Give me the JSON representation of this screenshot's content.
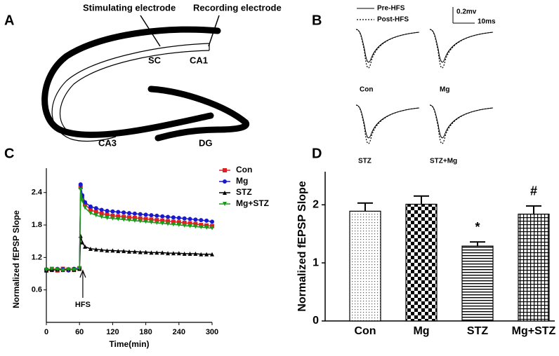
{
  "panel_labels": [
    "A",
    "B",
    "C",
    "D"
  ],
  "panel_a": {
    "labels": [
      "Stimulating electrode",
      "Recording electrode",
      "SC",
      "CA1",
      "CA3",
      "DG"
    ]
  },
  "panel_b": {
    "legend": [
      "Pre-HFS",
      "Post-HFS"
    ],
    "scale": [
      "0.2mv",
      "10ms"
    ],
    "traces": [
      "Con",
      "Mg",
      "STZ",
      "STZ+Mg"
    ]
  },
  "chart_data": [
    {
      "type": "line",
      "x_label": "Time(min)",
      "y_label": "Normalized fEPSP Slope",
      "x": [
        0,
        10,
        20,
        30,
        40,
        50,
        60,
        62,
        65,
        70,
        80,
        90,
        100,
        110,
        120,
        130,
        140,
        150,
        160,
        170,
        180,
        190,
        200,
        210,
        220,
        230,
        240,
        250,
        260,
        270,
        280,
        290,
        300
      ],
      "series": [
        {
          "name": "Con",
          "color": "#e02020",
          "marker": "square",
          "values": [
            0.97,
            0.98,
            0.96,
            0.99,
            0.97,
            0.98,
            1.0,
            2.5,
            2.3,
            2.18,
            2.08,
            2.04,
            2.01,
            1.99,
            1.97,
            1.96,
            1.95,
            1.94,
            1.93,
            1.92,
            1.91,
            1.9,
            1.89,
            1.88,
            1.87,
            1.86,
            1.85,
            1.84,
            1.83,
            1.82,
            1.8,
            1.79,
            1.78
          ]
        },
        {
          "name": "Mg",
          "color": "#1a1acc",
          "marker": "circle",
          "values": [
            0.98,
            0.97,
            0.99,
            0.98,
            0.96,
            0.99,
            1.0,
            2.55,
            2.35,
            2.22,
            2.14,
            2.11,
            2.08,
            2.06,
            2.05,
            2.04,
            2.03,
            2.02,
            2.01,
            2.0,
            1.99,
            1.98,
            1.97,
            1.96,
            1.95,
            1.94,
            1.93,
            1.92,
            1.91,
            1.9,
            1.89,
            1.88,
            1.86
          ]
        },
        {
          "name": "STZ",
          "color": "#000000",
          "marker": "triangle-up",
          "values": [
            0.96,
            0.97,
            0.98,
            0.97,
            0.99,
            0.97,
            0.99,
            1.6,
            1.48,
            1.4,
            1.36,
            1.35,
            1.34,
            1.33,
            1.33,
            1.32,
            1.32,
            1.31,
            1.31,
            1.3,
            1.3,
            1.29,
            1.29,
            1.29,
            1.28,
            1.28,
            1.28,
            1.27,
            1.27,
            1.27,
            1.26,
            1.26,
            1.26
          ]
        },
        {
          "name": "Mg+STZ",
          "color": "#1a9a1a",
          "marker": "triangle-down",
          "values": [
            0.97,
            0.99,
            0.98,
            0.96,
            0.98,
            0.97,
            1.0,
            2.45,
            2.25,
            2.12,
            2.02,
            1.98,
            1.95,
            1.93,
            1.92,
            1.91,
            1.9,
            1.89,
            1.88,
            1.87,
            1.86,
            1.85,
            1.84,
            1.83,
            1.82,
            1.81,
            1.8,
            1.79,
            1.78,
            1.77,
            1.76,
            1.75,
            1.74
          ]
        }
      ],
      "xlim": [
        0,
        300
      ],
      "xticks": [
        0,
        60,
        120,
        180,
        240,
        300
      ],
      "ylim": [
        0,
        2.85
      ],
      "yticks": [
        0.6,
        1.2,
        1.8,
        2.4
      ],
      "legend": "upper right",
      "annotations": [
        {
          "text": "HFS",
          "x": 66
        }
      ]
    },
    {
      "type": "bar",
      "y_label": "Normalized fEPSP Slope",
      "categories": [
        "Con",
        "Mg",
        "STZ",
        "Mg+STZ"
      ],
      "values": [
        1.89,
        2.01,
        1.29,
        1.84
      ],
      "errors": [
        0.14,
        0.14,
        0.07,
        0.14
      ],
      "patterns": [
        "dots",
        "checker",
        "hlines",
        "grid"
      ],
      "ylim": [
        0,
        2.57
      ],
      "yticks": [
        0,
        1,
        2
      ],
      "annotations": [
        {
          "text": "*",
          "category": "STZ"
        },
        {
          "text": "#",
          "category": "Mg+STZ"
        }
      ]
    }
  ]
}
